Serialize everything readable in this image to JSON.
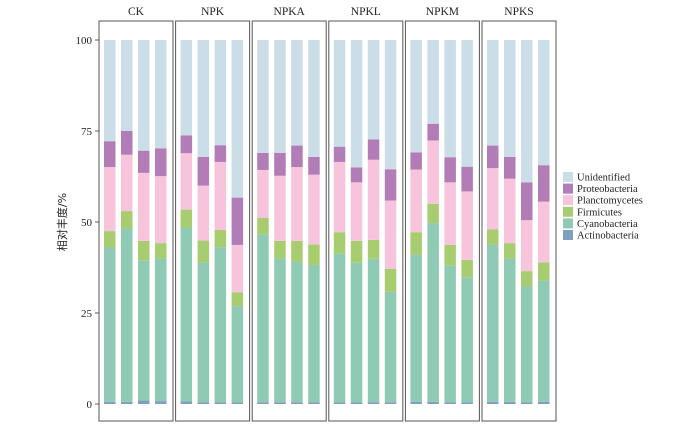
{
  "chart_data": {
    "type": "bar",
    "stacked": true,
    "ylabel": "相对丰度/%",
    "ylim": [
      0,
      100
    ],
    "yticks": [
      "0",
      "25",
      "50",
      "75",
      "100"
    ],
    "groups": [
      "CK",
      "NPK",
      "NPKA",
      "NPKL",
      "NPKM",
      "NPKS"
    ],
    "bars_per_group": 4,
    "series": [
      {
        "name": "Actinobacteria",
        "color": "#7f9fbf",
        "values": [
          [
            0.6,
            0.6,
            1.0,
            0.8
          ],
          [
            0.7,
            0.5,
            0.5,
            0.5
          ],
          [
            0.5,
            0.5,
            0.5,
            0.5
          ],
          [
            0.5,
            0.5,
            0.5,
            0.5
          ],
          [
            0.6,
            0.6,
            0.5,
            0.5
          ],
          [
            0.6,
            0.6,
            0.5,
            0.6
          ]
        ]
      },
      {
        "name": "Cyanobacteria",
        "color": "#8fcab4",
        "values": [
          [
            42.4,
            47.6,
            38.5,
            39.2
          ],
          [
            47.8,
            38.4,
            42.6,
            26.4
          ],
          [
            46.1,
            39.5,
            38.5,
            37.7
          ],
          [
            40.8,
            38.3,
            39.4,
            30.3
          ],
          [
            40.5,
            49.1,
            37.5,
            34.2
          ],
          [
            43.2,
            39.4,
            31.8,
            33.3
          ]
        ]
      },
      {
        "name": "Firmicutes",
        "color": "#a8cc70",
        "values": [
          [
            4.5,
            4.8,
            5.3,
            4.2
          ],
          [
            4.9,
            6.0,
            4.7,
            3.8
          ],
          [
            4.5,
            4.8,
            5.8,
            5.6
          ],
          [
            5.9,
            6.0,
            5.2,
            6.3
          ],
          [
            6.1,
            5.3,
            5.7,
            4.9
          ],
          [
            4.2,
            4.2,
            4.2,
            5.0
          ]
        ]
      },
      {
        "name": "Planctomycetes",
        "color": "#f8c4db",
        "values": [
          [
            17.6,
            15.5,
            18.7,
            18.4
          ],
          [
            15.5,
            15.1,
            18.7,
            13.0
          ],
          [
            13.2,
            17.9,
            20.3,
            19.2
          ],
          [
            19.3,
            16.1,
            22.0,
            18.8
          ],
          [
            17.2,
            17.4,
            17.2,
            18.8
          ],
          [
            16.8,
            17.7,
            14.0,
            16.7
          ]
        ]
      },
      {
        "name": "Proteobacteria",
        "color": "#b27cb6",
        "values": [
          [
            7.1,
            6.5,
            6.1,
            7.6
          ],
          [
            4.9,
            7.9,
            4.6,
            13.0
          ],
          [
            4.7,
            6.3,
            5.9,
            4.9
          ],
          [
            4.2,
            4.1,
            5.6,
            8.6
          ],
          [
            4.7,
            4.6,
            6.9,
            6.8
          ],
          [
            6.2,
            6.0,
            10.4,
            10.0
          ]
        ]
      },
      {
        "name": "Unidentified",
        "color": "#cbdde6",
        "values": [
          [
            27.8,
            25.0,
            30.4,
            29.8
          ],
          [
            26.2,
            32.1,
            28.9,
            43.3
          ],
          [
            31.0,
            31.0,
            29.0,
            32.1
          ],
          [
            29.3,
            35.0,
            27.3,
            35.5
          ],
          [
            30.9,
            23.0,
            32.2,
            34.8
          ],
          [
            29.0,
            32.1,
            39.1,
            34.4
          ]
        ]
      }
    ],
    "legend": {
      "placement": "right",
      "order": [
        "Unidentified",
        "Proteobacteria",
        "Planctomycetes",
        "Firmicutes",
        "Cyanobacteria",
        "Actinobacteria"
      ]
    },
    "grid": false
  }
}
